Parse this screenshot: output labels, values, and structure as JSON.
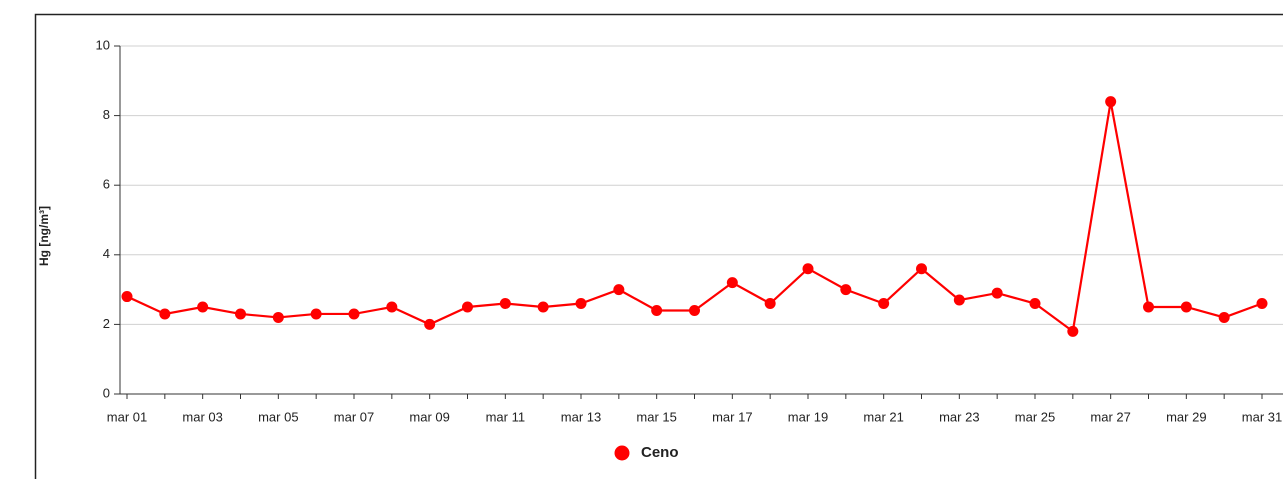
{
  "chart_data": {
    "type": "line",
    "y_label": "Hg [ng/m³]",
    "categories": [
      "mar 01",
      null,
      "mar 03",
      null,
      "mar 05",
      null,
      "mar 07",
      null,
      "mar 09",
      null,
      "mar 11",
      null,
      "mar 13",
      null,
      "mar 15",
      null,
      "mar 17",
      null,
      "mar 19",
      null,
      "mar 21",
      null,
      "mar 23",
      null,
      "mar 25",
      null,
      "mar 27",
      null,
      "mar 29",
      null,
      "mar 31"
    ],
    "series": [
      {
        "name": "Ceno",
        "color": "#ff0000",
        "values": [
          2.8,
          2.3,
          2.5,
          2.3,
          2.2,
          2.3,
          2.3,
          2.5,
          2.0,
          2.5,
          2.6,
          2.5,
          2.6,
          3.0,
          2.4,
          2.4,
          3.2,
          2.6,
          3.6,
          3.0,
          2.6,
          3.6,
          2.7,
          2.9,
          2.6,
          1.8,
          8.4,
          2.5,
          2.5,
          2.2,
          2.6
        ]
      }
    ],
    "ylim": [
      0,
      10
    ],
    "yticks": [
      0,
      2,
      4,
      6,
      8,
      10
    ],
    "grid": true,
    "legend": "bottom"
  }
}
